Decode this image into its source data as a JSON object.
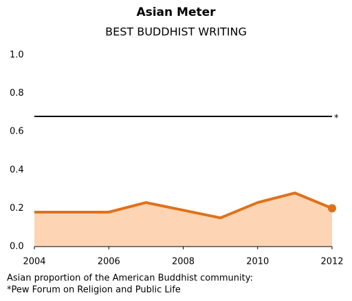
{
  "chart_data": {
    "type": "area-line",
    "title": "Asian Meter",
    "subtitle": "BEST BUDDHIST WRITING",
    "x": [
      2004,
      2005,
      2006,
      2007,
      2008,
      2009,
      2010,
      2011,
      2012
    ],
    "series": [
      {
        "name": "Asian proportion",
        "color": "#e0711a",
        "fill": "#fdd5b4",
        "values": [
          0.18,
          0.18,
          0.18,
          0.23,
          0.19,
          0.15,
          0.23,
          0.28,
          0.2
        ]
      }
    ],
    "xlim": [
      2004,
      2012
    ],
    "xticks": [
      2004,
      2006,
      2008,
      2010,
      2012
    ],
    "ylim": [
      0,
      1
    ],
    "yticks": [
      {
        "value": 0,
        "label": "0.0"
      },
      {
        "value": 0.2,
        "label": "0.2"
      },
      {
        "value": 0.4,
        "label": "0.4"
      },
      {
        "value": 0.6,
        "label": "0.6"
      },
      {
        "value": 0.8,
        "label": "0.8"
      },
      {
        "value": 1,
        "label": "1.0"
      }
    ],
    "reference_line": {
      "value": 0.68,
      "label": "*",
      "color": "#000000"
    },
    "notes": [
      "Asian proportion of the American Buddhist community:",
      "*Pew Forum on Religion and Public Life"
    ]
  }
}
